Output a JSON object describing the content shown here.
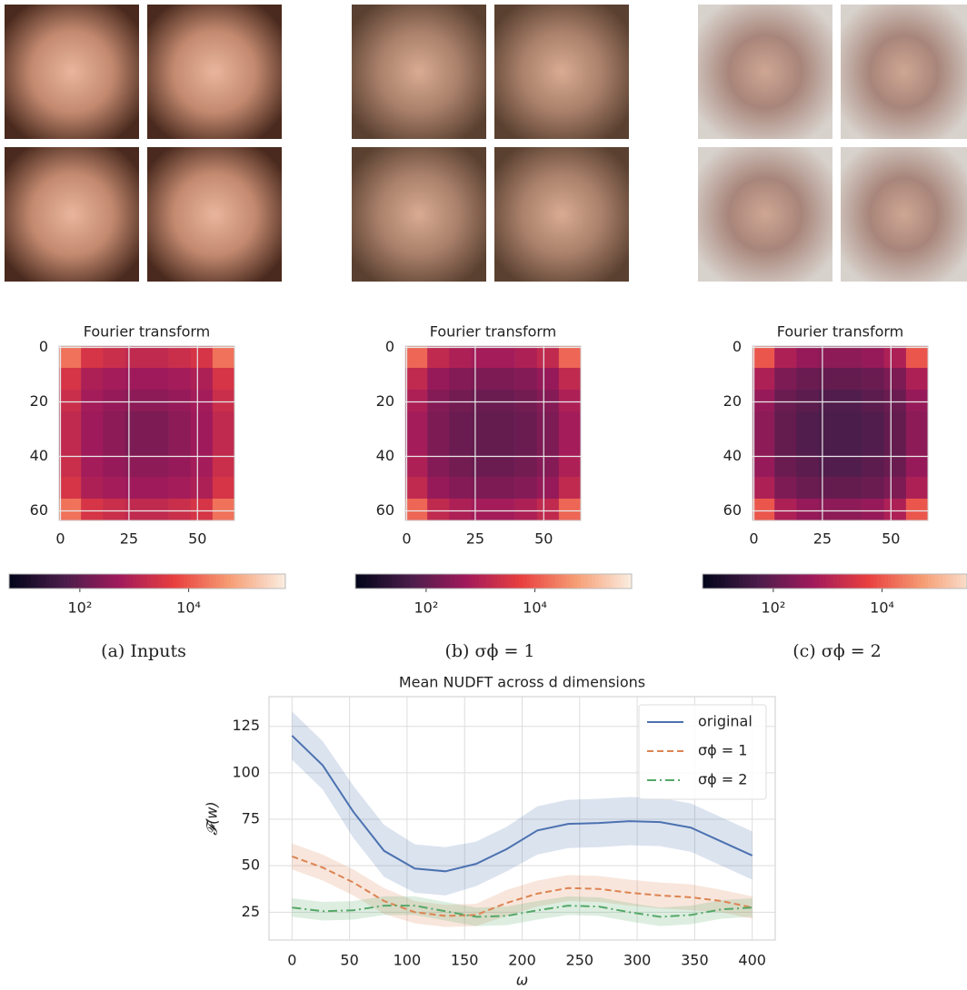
{
  "chart_data": [
    {
      "type": "heatmap",
      "title": "Fourier transform",
      "caption": "(a) Inputs",
      "colormap": "rocket",
      "log_color": true,
      "xlim": [
        -0.5,
        63.5
      ],
      "ylim": [
        63.5,
        -0.5
      ],
      "xticks": [
        0,
        25,
        50
      ],
      "yticks": [
        0,
        20,
        40,
        60
      ],
      "grid": true,
      "clim": [
        5,
        600000
      ],
      "cticks": [
        {
          "value": 100,
          "label": "10²"
        },
        {
          "value": 10000,
          "label": "10⁴"
        }
      ],
      "values": [
        [
          20000,
          3000,
          2000,
          1500,
          1500,
          2000,
          3000,
          20000
        ],
        [
          3000,
          800,
          600,
          500,
          500,
          600,
          800,
          3000
        ],
        [
          2000,
          600,
          400,
          300,
          300,
          400,
          600,
          2000
        ],
        [
          1500,
          500,
          300,
          200,
          200,
          300,
          500,
          1500
        ],
        [
          1500,
          500,
          300,
          200,
          200,
          300,
          500,
          1500
        ],
        [
          2000,
          600,
          400,
          300,
          300,
          400,
          600,
          2000
        ],
        [
          3000,
          800,
          600,
          500,
          500,
          600,
          800,
          3000
        ],
        [
          20000,
          3000,
          2000,
          1500,
          1500,
          2000,
          3000,
          20000
        ]
      ]
    },
    {
      "type": "heatmap",
      "title": "Fourier transform",
      "caption": "(b) σϕ = 1",
      "colormap": "rocket",
      "log_color": true,
      "xlim": [
        -0.5,
        63.5
      ],
      "ylim": [
        63.5,
        -0.5
      ],
      "xticks": [
        0,
        25,
        50
      ],
      "yticks": [
        0,
        20,
        40,
        60
      ],
      "grid": true,
      "clim": [
        5,
        600000
      ],
      "cticks": [
        {
          "value": 100,
          "label": "10²"
        },
        {
          "value": 10000,
          "label": "10⁴"
        }
      ],
      "values": [
        [
          15000,
          1500,
          800,
          600,
          600,
          800,
          1500,
          15000
        ],
        [
          1500,
          400,
          250,
          200,
          200,
          250,
          400,
          1500
        ],
        [
          800,
          250,
          150,
          120,
          120,
          150,
          250,
          800
        ],
        [
          600,
          200,
          120,
          100,
          100,
          120,
          200,
          600
        ],
        [
          600,
          200,
          120,
          100,
          100,
          120,
          200,
          600
        ],
        [
          800,
          250,
          150,
          120,
          120,
          150,
          250,
          800
        ],
        [
          1500,
          400,
          250,
          200,
          200,
          250,
          400,
          1500
        ],
        [
          15000,
          1500,
          800,
          600,
          600,
          800,
          1500,
          15000
        ]
      ]
    },
    {
      "type": "heatmap",
      "title": "Fourier transform",
      "caption": "(c) σϕ = 2",
      "colormap": "rocket",
      "log_color": true,
      "xlim": [
        -0.5,
        63.5
      ],
      "ylim": [
        63.5,
        -0.5
      ],
      "xticks": [
        0,
        25,
        50
      ],
      "yticks": [
        0,
        20,
        40,
        60
      ],
      "grid": true,
      "clim": [
        5,
        600000
      ],
      "cticks": [
        {
          "value": 100,
          "label": "10²"
        },
        {
          "value": 10000,
          "label": "10⁴"
        }
      ],
      "values": [
        [
          10000,
          800,
          400,
          300,
          300,
          400,
          800,
          10000
        ],
        [
          800,
          200,
          120,
          100,
          100,
          120,
          200,
          800
        ],
        [
          400,
          120,
          80,
          60,
          60,
          80,
          120,
          400
        ],
        [
          300,
          100,
          60,
          50,
          50,
          60,
          100,
          300
        ],
        [
          300,
          100,
          60,
          50,
          50,
          60,
          100,
          300
        ],
        [
          400,
          120,
          80,
          60,
          60,
          80,
          120,
          400
        ],
        [
          800,
          200,
          120,
          100,
          100,
          120,
          200,
          800
        ],
        [
          10000,
          800,
          400,
          300,
          300,
          400,
          800,
          10000
        ]
      ]
    },
    {
      "type": "line",
      "title": "Mean NUDFT across d dimensions",
      "x_label": "ω",
      "y_label": "𝓕(w)",
      "x": [
        0,
        26.7,
        53.3,
        80,
        106.7,
        133.3,
        160,
        186.7,
        213.3,
        240,
        266.7,
        293.3,
        320,
        346.7,
        373.3,
        400
      ],
      "xlim": [
        -20,
        420
      ],
      "ylim": [
        10,
        141
      ],
      "xticks": [
        0,
        50,
        100,
        150,
        200,
        250,
        300,
        350,
        400
      ],
      "yticks": [
        25,
        50,
        75,
        100,
        125
      ],
      "grid": true,
      "legend": "upper right",
      "series": [
        {
          "name": "original",
          "color": "#4c72b0",
          "linestyle": "solid",
          "values": [
            120,
            104,
            79,
            58,
            48.5,
            47,
            51,
            59,
            69,
            72.5,
            73,
            74,
            73.5,
            70.5,
            63,
            55.5
          ],
          "errors": [
            13,
            13,
            14,
            14,
            13,
            13,
            12,
            12,
            13,
            13,
            13,
            13,
            13,
            13,
            13,
            13
          ]
        },
        {
          "name": "σϕ = 1",
          "color": "#dd8452",
          "linestyle": "dashed",
          "values": [
            55,
            49,
            41,
            31,
            25,
            23,
            23.5,
            30,
            35,
            38,
            37.5,
            35.5,
            34,
            33,
            31,
            27.5
          ],
          "errors": [
            7,
            7,
            7,
            7,
            6,
            6,
            6,
            7,
            7,
            7,
            7,
            7,
            7,
            7,
            6,
            6
          ]
        },
        {
          "name": "σϕ = 2",
          "color": "#55a868",
          "linestyle": "dashdot",
          "values": [
            27.5,
            25.5,
            26,
            28.5,
            28.5,
            25.5,
            22.5,
            23,
            26,
            28.5,
            28,
            25,
            22.5,
            23.5,
            26.5,
            27.5
          ],
          "errors": [
            5,
            5,
            5,
            5,
            5,
            5,
            5,
            5,
            5,
            5,
            5,
            5,
            5,
            5,
            5,
            5
          ]
        }
      ]
    }
  ]
}
